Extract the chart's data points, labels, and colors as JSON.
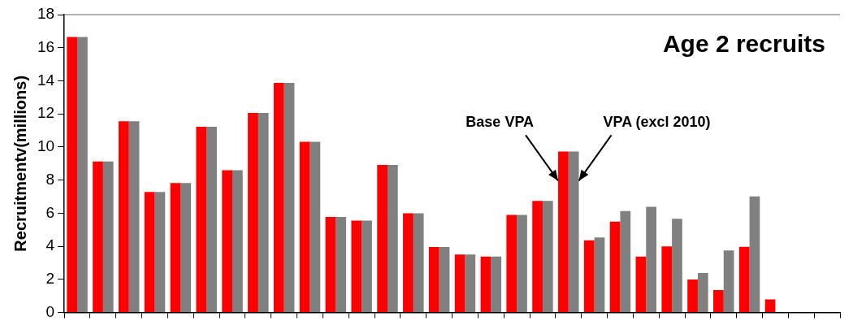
{
  "chart_data": {
    "type": "bar",
    "title": "Age 2 recruits",
    "ylabel": "Recruitmentv(millions)",
    "categories": [
      null,
      null,
      null,
      null,
      null,
      null,
      null,
      null,
      null,
      null,
      null,
      null,
      null,
      null,
      null,
      null,
      null,
      null,
      null,
      null,
      null,
      null,
      null,
      null,
      null,
      null,
      null,
      null,
      null,
      null
    ],
    "series": [
      {
        "name": "Base VPA",
        "color": "#ff0000",
        "values": [
          16.65,
          9.13,
          11.56,
          7.29,
          7.82,
          11.23,
          8.6,
          12.06,
          13.88,
          10.32,
          5.77,
          5.55,
          8.92,
          6.0,
          3.96,
          3.5,
          3.38,
          5.9,
          6.75,
          9.73,
          4.36,
          5.49,
          3.38,
          4.0,
          1.99,
          1.36,
          3.97,
          0.79,
          null,
          null
        ]
      },
      {
        "name": "VPA (excl 2010)",
        "color": "#808080",
        "values": [
          16.65,
          9.13,
          11.56,
          7.29,
          7.82,
          11.23,
          8.6,
          12.06,
          13.88,
          10.32,
          5.77,
          5.55,
          8.92,
          6.0,
          3.96,
          3.5,
          3.38,
          5.9,
          6.75,
          9.73,
          4.53,
          6.13,
          6.39,
          5.66,
          2.39,
          3.75,
          7.02,
          null,
          null,
          null
        ]
      }
    ],
    "ylim": [
      0,
      18
    ],
    "yticks": [
      0,
      2,
      4,
      6,
      8,
      10,
      12,
      14,
      16,
      18
    ],
    "grid": false,
    "legend": false,
    "tick_labels": "y"
  }
}
